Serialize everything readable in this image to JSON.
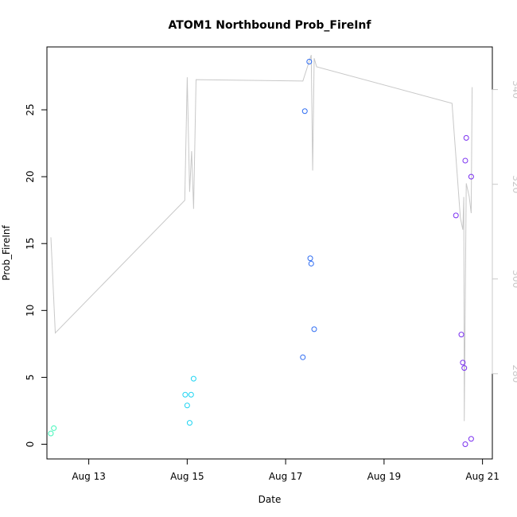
{
  "chart_data": {
    "type": "scatter",
    "title": "ATOM1 Northbound Prob_FireInf",
    "xlabel": "Date",
    "ylabel": "Prob_FireInf",
    "x_unit": "days since Aug 12",
    "xlim": [
      0.15,
      9.2
    ],
    "ylim": [
      -1.1,
      29.7
    ],
    "x_ticks": [
      {
        "value": 1,
        "label": "Aug 13"
      },
      {
        "value": 3,
        "label": "Aug 15"
      },
      {
        "value": 5,
        "label": "Aug 17"
      },
      {
        "value": 7,
        "label": "Aug 19"
      },
      {
        "value": 9,
        "label": "Aug 21"
      }
    ],
    "y_ticks": [
      0,
      5,
      10,
      15,
      20,
      25
    ],
    "y2lim": [
      262,
      349
    ],
    "y2_ticks": [
      280,
      300,
      320,
      340
    ],
    "points": [
      {
        "x": 0.23,
        "y": 0.8,
        "color": "#3cf5b7"
      },
      {
        "x": 0.29,
        "y": 1.2,
        "color": "#3cf5b7"
      },
      {
        "x": 2.96,
        "y": 3.7,
        "color": "#1fd4f2"
      },
      {
        "x": 3.0,
        "y": 2.9,
        "color": "#1fd4f2"
      },
      {
        "x": 3.05,
        "y": 1.6,
        "color": "#1fd4f2"
      },
      {
        "x": 3.08,
        "y": 3.7,
        "color": "#1fd4f2"
      },
      {
        "x": 3.13,
        "y": 4.9,
        "color": "#1fd4f2"
      },
      {
        "x": 5.35,
        "y": 6.5,
        "color": "#2e6cf2"
      },
      {
        "x": 5.39,
        "y": 24.9,
        "color": "#2e6cf2"
      },
      {
        "x": 5.48,
        "y": 28.6,
        "color": "#2e6cf2"
      },
      {
        "x": 5.5,
        "y": 13.9,
        "color": "#2e6cf2"
      },
      {
        "x": 5.52,
        "y": 13.5,
        "color": "#2e6cf2"
      },
      {
        "x": 5.58,
        "y": 8.6,
        "color": "#2e6cf2"
      },
      {
        "x": 8.46,
        "y": 17.1,
        "color": "#7a2ff0"
      },
      {
        "x": 8.57,
        "y": 8.2,
        "color": "#7a2ff0"
      },
      {
        "x": 8.6,
        "y": 6.1,
        "color": "#7a2ff0"
      },
      {
        "x": 8.63,
        "y": 5.7,
        "color": "#7a2ff0"
      },
      {
        "x": 8.65,
        "y": 21.2,
        "color": "#7a2ff0"
      },
      {
        "x": 8.65,
        "y": 0.0,
        "color": "#7a2ff0"
      },
      {
        "x": 8.67,
        "y": 22.9,
        "color": "#7a2ff0"
      },
      {
        "x": 8.77,
        "y": 20.0,
        "color": "#7a2ff0"
      },
      {
        "x": 8.77,
        "y": 0.4,
        "color": "#7a2ff0"
      }
    ],
    "line": {
      "color": "#c8c8c8",
      "axis": "right",
      "x": [
        0.23,
        0.32,
        2.95,
        3.0,
        3.05,
        3.09,
        3.13,
        3.18,
        5.35,
        5.52,
        5.55,
        5.58,
        5.63,
        8.38,
        8.55,
        8.6,
        8.62,
        8.63,
        8.67,
        8.73,
        8.77,
        8.79
      ],
      "y": [
        308.8,
        288.6,
        316.6,
        342.6,
        318.4,
        327.0,
        314.8,
        342.1,
        341.8,
        347.3,
        322.9,
        346.6,
        344.8,
        337.1,
        312.9,
        310.4,
        317.3,
        270.0,
        320.2,
        317.4,
        313.9,
        340.5
      ]
    },
    "grid": false,
    "legend": "none"
  }
}
